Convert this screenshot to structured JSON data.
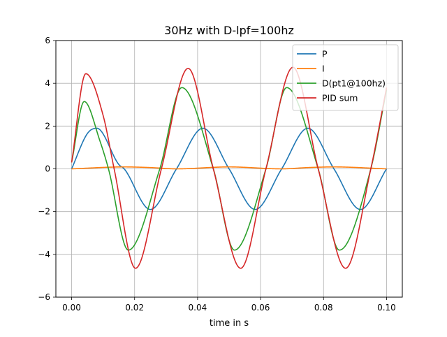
{
  "chart_data": {
    "type": "line",
    "title": "30Hz with D-lpf=100hz",
    "xlabel": "time in s",
    "ylabel": "",
    "xlim": [
      -0.005,
      0.105
    ],
    "ylim": [
      -6,
      6
    ],
    "xticks": [
      0.0,
      0.02,
      0.04,
      0.06,
      0.08,
      0.1
    ],
    "xtick_labels": [
      "0.00",
      "0.02",
      "0.04",
      "0.06",
      "0.08",
      "0.10"
    ],
    "yticks": [
      -6,
      -4,
      -2,
      0,
      2,
      4,
      6
    ],
    "ytick_labels": [
      "−6",
      "−4",
      "−2",
      "0",
      "2",
      "4",
      "6"
    ],
    "grid": true,
    "legend_position": "top-right",
    "series": [
      {
        "name": "P",
        "color": "#1f77b4",
        "x": [
          0.0,
          0.005,
          0.008,
          0.015,
          0.0167,
          0.025,
          0.0333,
          0.0417,
          0.05,
          0.0583,
          0.0667,
          0.075,
          0.0833,
          0.0917,
          0.1
        ],
        "y": [
          0.0,
          1.65,
          1.9,
          0.2,
          0.0,
          -1.9,
          0.0,
          1.9,
          0.0,
          -1.9,
          0.0,
          1.9,
          0.0,
          -1.9,
          0.0
        ]
      },
      {
        "name": "I",
        "color": "#ff7f0e",
        "x": [
          0.0,
          0.0167,
          0.025,
          0.0333,
          0.05,
          0.0667,
          0.075,
          0.0833,
          0.1
        ],
        "y": [
          0.0,
          0.09,
          0.06,
          0.0,
          0.09,
          0.0,
          0.06,
          0.09,
          0.0
        ]
      },
      {
        "name": "D(pt1@100hz)",
        "color": "#2ca02c",
        "x": [
          0.0,
          0.004,
          0.009,
          0.0117,
          0.018,
          0.028,
          0.035,
          0.045,
          0.0517,
          0.0617,
          0.0683,
          0.0783,
          0.085,
          0.095,
          0.1
        ],
        "y": [
          0.3,
          3.15,
          1.3,
          0.0,
          -3.8,
          0.0,
          3.8,
          0.0,
          -3.8,
          0.0,
          3.8,
          0.0,
          -3.8,
          0.0,
          3.7
        ]
      },
      {
        "name": "PID sum",
        "color": "#d62728",
        "x": [
          0.0,
          0.0045,
          0.01,
          0.0135,
          0.0203,
          0.0285,
          0.037,
          0.045,
          0.0537,
          0.0617,
          0.0703,
          0.0783,
          0.087,
          0.095,
          0.1
        ],
        "y": [
          0.3,
          4.45,
          2.5,
          0.0,
          -4.65,
          0.0,
          4.7,
          0.0,
          -4.65,
          0.0,
          4.75,
          0.0,
          -4.65,
          0.0,
          3.8
        ]
      }
    ]
  }
}
